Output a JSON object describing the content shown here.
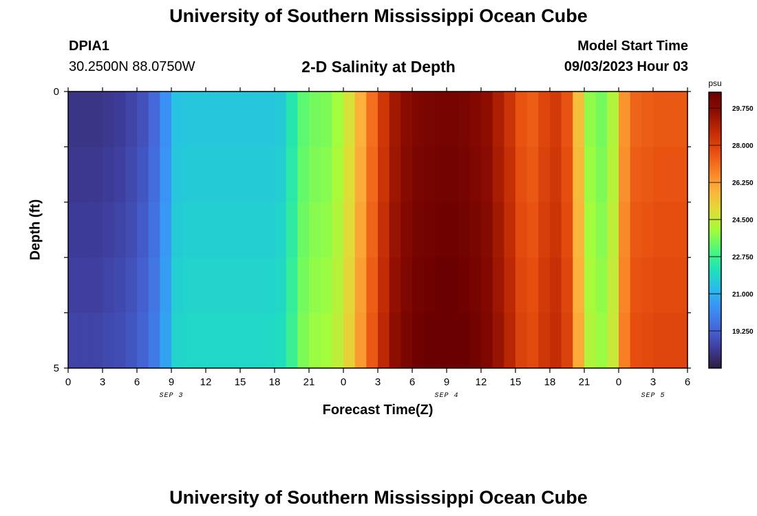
{
  "header": {
    "title": "University of Southern Mississippi Ocean Cube",
    "station_id": "DPIA1",
    "coordinates": "30.2500N  88.0750W",
    "subtitle": "2-D Salinity at Depth",
    "model_start_label": "Model Start Time",
    "model_start_value": "09/03/2023 Hour 03"
  },
  "footer": {
    "title": "University of Southern Mississippi Ocean Cube"
  },
  "chart_data": {
    "type": "heatmap",
    "xlabel": "Forecast Time(Z)",
    "ylabel": "Depth (ft)",
    "x_ticks": [
      "0",
      "3",
      "6",
      "9",
      "12",
      "15",
      "18",
      "21",
      "0",
      "3",
      "6",
      "9",
      "12",
      "15",
      "18",
      "21",
      "0",
      "3",
      "6"
    ],
    "date_labels": [
      {
        "label": "SEP 3",
        "at_hour": 9
      },
      {
        "label": "SEP 4",
        "at_hour": 33
      },
      {
        "label": "SEP 5",
        "at_hour": 51
      }
    ],
    "x_range_hours": [
      0,
      54
    ],
    "y_ticks": [
      "0",
      "5"
    ],
    "ylim": [
      0,
      5
    ],
    "colorbar": {
      "unit": "psu",
      "ticks": [
        "29.750",
        "28.000",
        "26.250",
        "24.500",
        "22.750",
        "21.000",
        "19.250"
      ],
      "tick_values": [
        29.75,
        28.0,
        26.25,
        24.5,
        22.75,
        21.0,
        19.25
      ],
      "range": [
        17.5,
        30.5
      ],
      "colors": [
        "#2d1e3e",
        "#3e3c9b",
        "#4567d8",
        "#3b8ff5",
        "#29bbec",
        "#1ee2b9",
        "#4ef87a",
        "#a3fc3c",
        "#e0dd37",
        "#fbb33b",
        "#f98025",
        "#e64d0f",
        "#c02b04",
        "#8e0d01",
        "#6b0000"
      ]
    },
    "depth_layers": 5,
    "salinity_by_hour": [
      18.2,
      18.2,
      18.2,
      18.3,
      18.4,
      18.6,
      18.9,
      19.4,
      20.3,
      21.4,
      21.5,
      21.5,
      21.5,
      21.5,
      21.5,
      21.5,
      21.5,
      21.5,
      21.6,
      22.3,
      23.2,
      23.5,
      23.6,
      24.0,
      24.8,
      25.9,
      27.1,
      28.3,
      29.2,
      29.7,
      30.0,
      30.1,
      30.2,
      30.2,
      30.1,
      29.9,
      29.6,
      29.0,
      28.4,
      27.6,
      27.4,
      27.9,
      28.2,
      27.6,
      25.6,
      23.8,
      23.5,
      24.2,
      26.4,
      27.3,
      27.4,
      27.5,
      27.5,
      27.5,
      27.5
    ],
    "depth_adjustment": [
      0.0,
      0.1,
      0.2,
      0.3,
      0.4
    ]
  }
}
